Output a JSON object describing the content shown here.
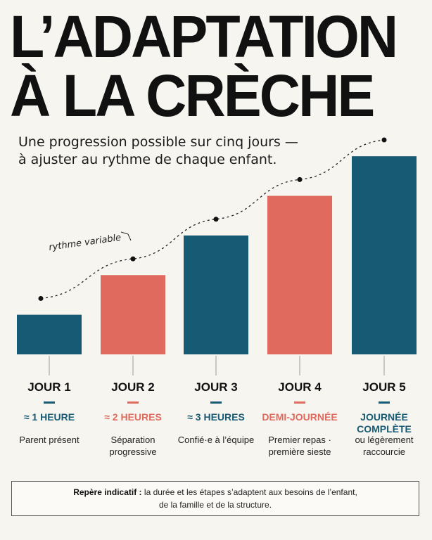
{
  "header": {
    "title_line1": "L’ADAPTATION",
    "title_line2": "À LA CRÈCHE",
    "subtitle_line1": "Une progression possible sur cinq jours —",
    "subtitle_line2": "à ajuster au rythme de chaque enfant."
  },
  "colors": {
    "teal": "#175a73",
    "coral": "#e06a5d",
    "background": "#f7f5f0"
  },
  "chart_data": {
    "type": "bar",
    "categories": [
      "JOUR 1",
      "JOUR 2",
      "JOUR 3",
      "JOUR 4",
      "JOUR 5"
    ],
    "values": [
      1,
      2,
      3,
      4,
      5
    ],
    "trend_values": [
      1.5,
      2.5,
      3.5,
      4.5,
      5.5
    ],
    "annotation": "rythme variable",
    "bar_colors": [
      "#175a73",
      "#e06a5d",
      "#175a73",
      "#e06a5d",
      "#175a73"
    ],
    "ylim": [
      0,
      5.5
    ],
    "grid": false,
    "legend": "none"
  },
  "days": [
    {
      "label": "JOUR 1",
      "duration": "≈ 1 HEURE",
      "detail": "Parent présent",
      "color": "#175a73"
    },
    {
      "label": "JOUR 2",
      "duration": "≈ 2 HEURES",
      "detail": "Séparation progressive",
      "color": "#e06a5d"
    },
    {
      "label": "JOUR 3",
      "duration": "≈ 3 HEURES",
      "detail": "Confié·e à l’équipe",
      "color": "#175a73"
    },
    {
      "label": "JOUR 4",
      "duration": "DEMI-JOURNÉE",
      "detail": "Premier repas · première sieste",
      "color": "#e06a5d"
    },
    {
      "label": "JOUR 5",
      "duration": "JOURNÉE COMPLÈTE",
      "detail": "ou légèrement raccourcie",
      "color": "#175a73"
    }
  ],
  "note": {
    "label": "Repère indicatif :",
    "text_line1": "la durée et les étapes s’adaptent aux besoins de l’enfant,",
    "text_line2": "de la famille et de la structure."
  }
}
